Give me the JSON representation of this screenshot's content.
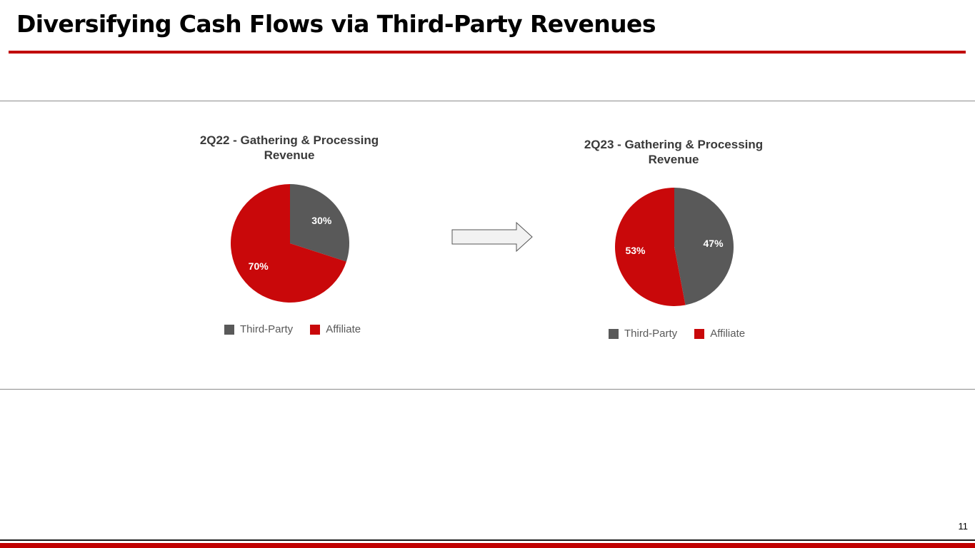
{
  "slide": {
    "title": "Diversifying Cash Flows via Third-Party Revenues",
    "page_number": "11"
  },
  "colors": {
    "accent_red": "#c00000",
    "third_party": "#595959",
    "affiliate": "#c9080a"
  },
  "chart_data": [
    {
      "type": "pie",
      "title": "2Q22 - Gathering & Processing Revenue",
      "title_lines": [
        "2Q22 - Gathering & Processing",
        "Revenue"
      ],
      "categories": [
        "Third-Party",
        "Affiliate"
      ],
      "values": [
        30,
        70
      ],
      "labels": [
        "30%",
        "70%"
      ],
      "colors": [
        "#595959",
        "#c9080a"
      ],
      "legend": {
        "position": "bottom",
        "items": [
          "Third-Party",
          "Affiliate"
        ]
      }
    },
    {
      "type": "pie",
      "title": "2Q23 - Gathering & Processing Revenue",
      "title_lines": [
        "2Q23 - Gathering & Processing",
        "Revenue"
      ],
      "categories": [
        "Third-Party",
        "Affiliate"
      ],
      "values": [
        47,
        53
      ],
      "labels": [
        "47%",
        "53%"
      ],
      "colors": [
        "#595959",
        "#c9080a"
      ],
      "legend": {
        "position": "bottom",
        "items": [
          "Third-Party",
          "Affiliate"
        ]
      }
    }
  ]
}
